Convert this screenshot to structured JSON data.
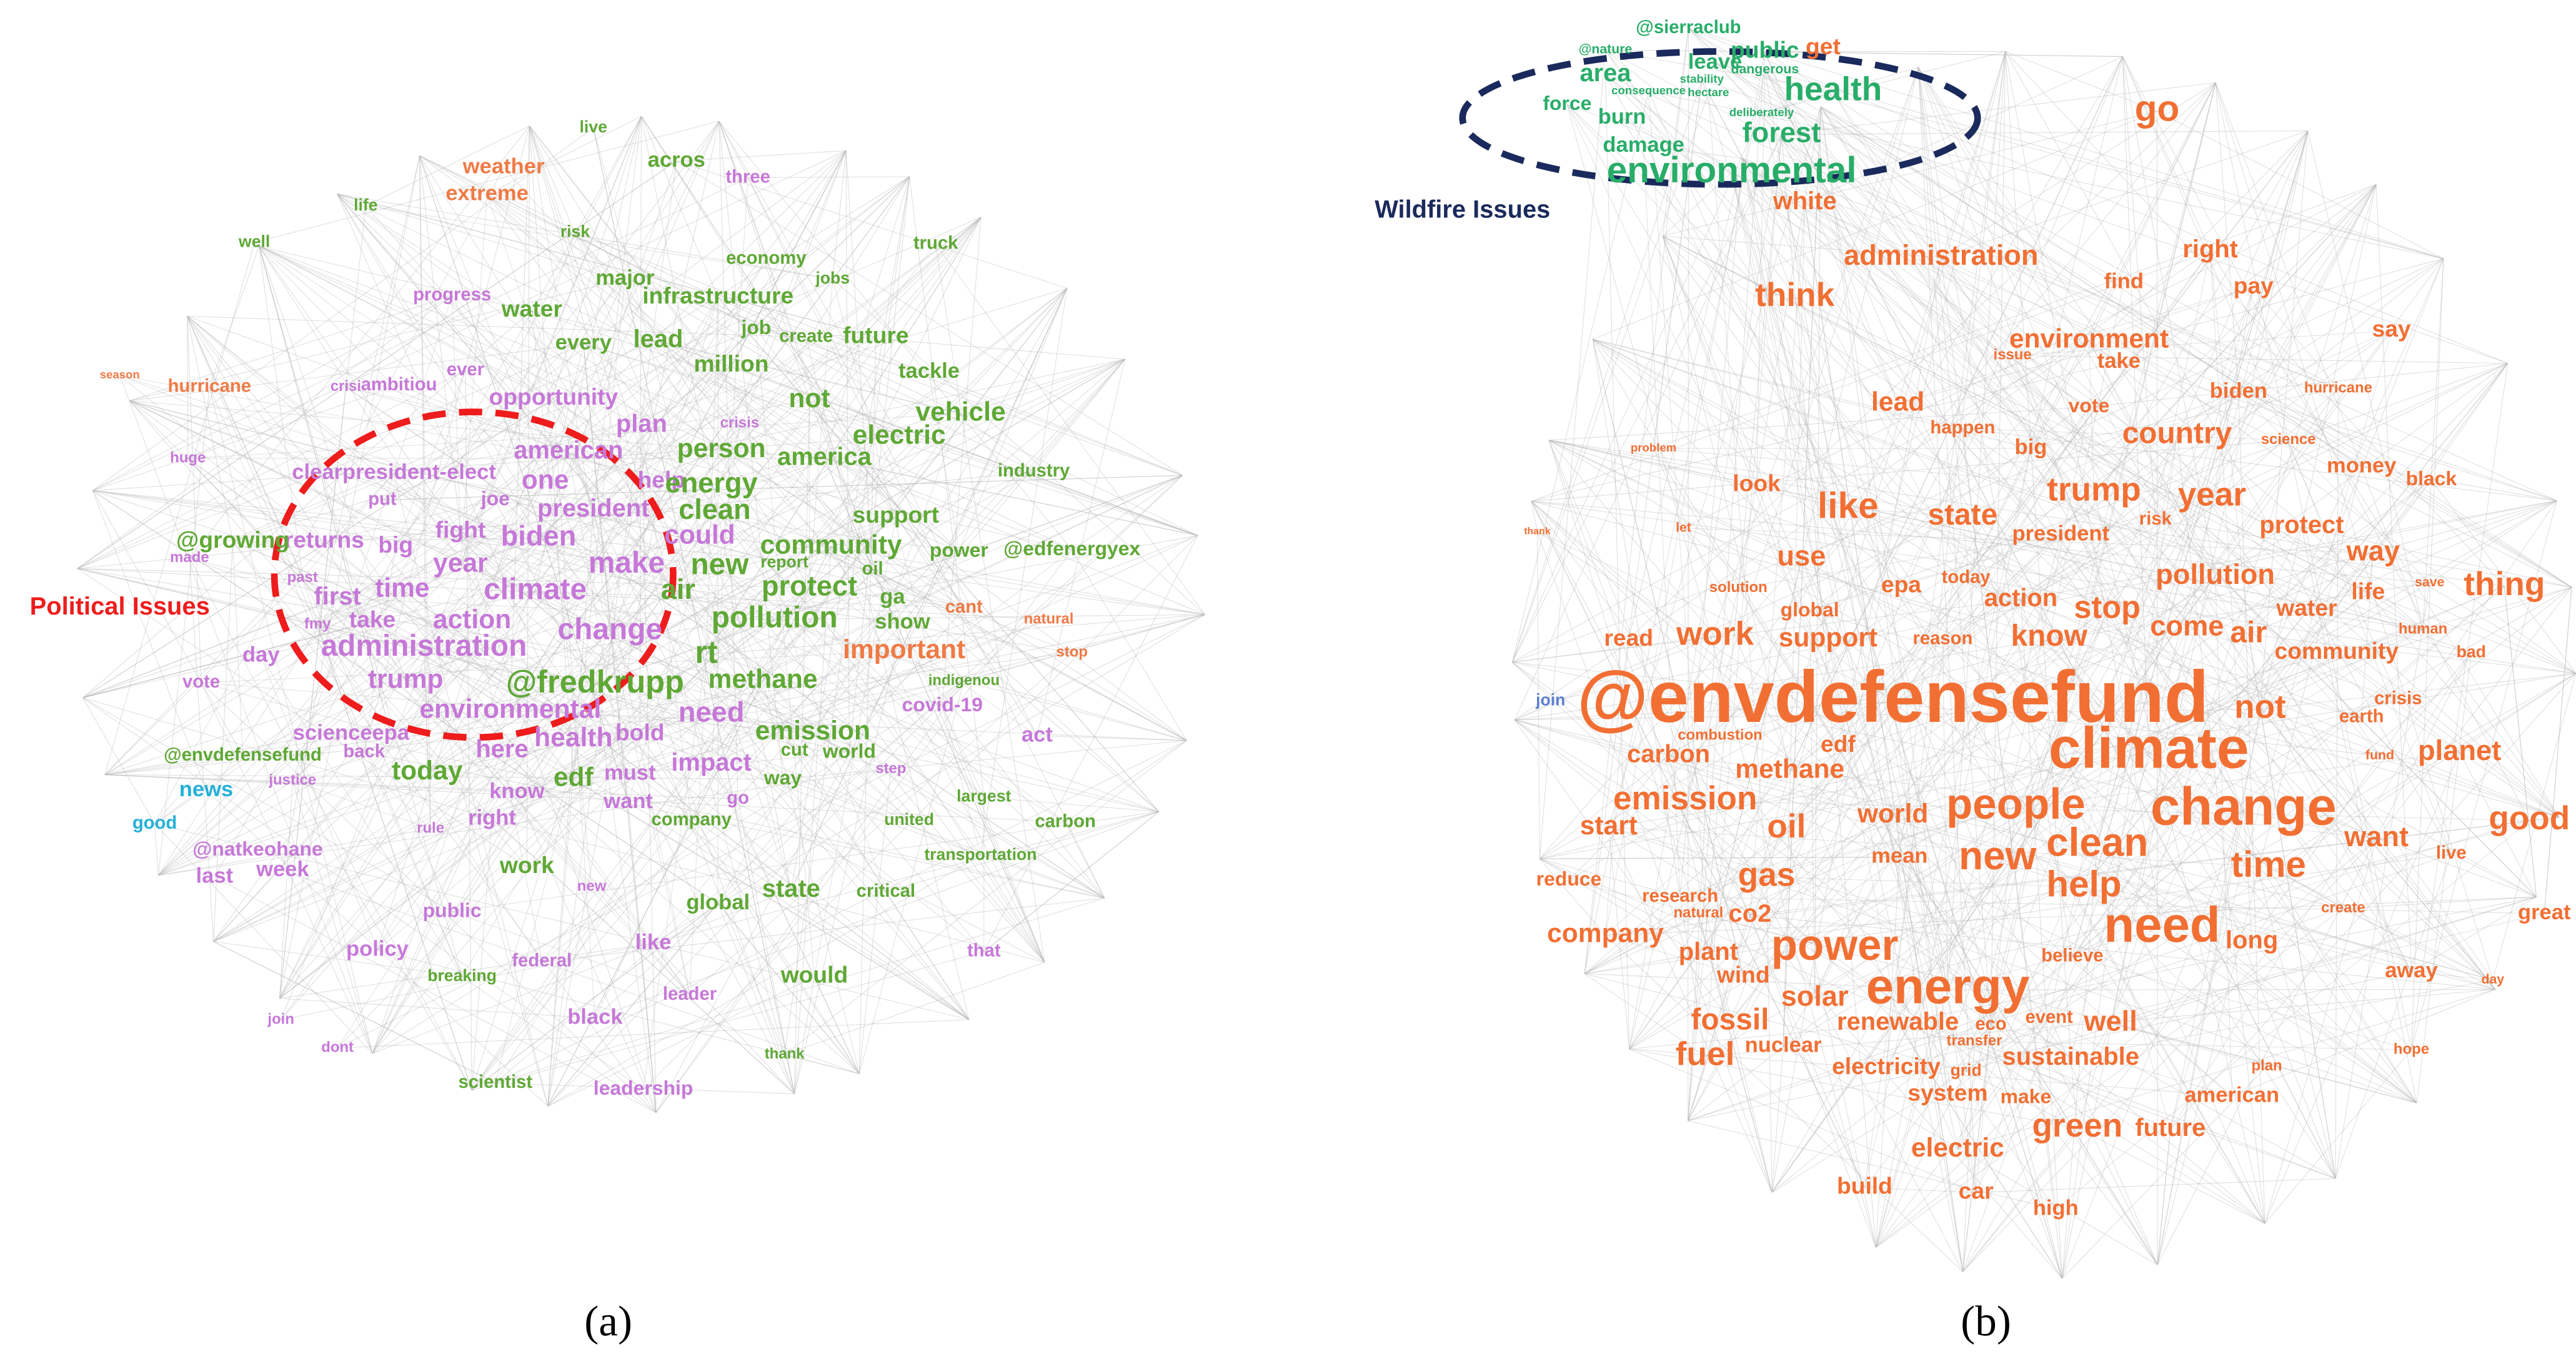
{
  "panels": [
    {
      "label": "(a)",
      "annotation": "Political Issues",
      "annotation_color": "#ee1c1c",
      "groups": [
        {
          "color": "#c678d8",
          "words": [
            "opportunity",
            "american",
            "plan",
            "one",
            "president",
            "help",
            "biden",
            "fight",
            "year",
            "make",
            "climate",
            "time",
            "first",
            "action",
            "change",
            "administration",
            "trump",
            "environmental",
            "health",
            "here",
            "bold",
            "need",
            "impact",
            "science",
            "epa",
            "day",
            "vote",
            "back",
            "justice",
            "know",
            "must",
            "want",
            "go",
            "right",
            "rule",
            "week",
            "@natkeohane",
            "last",
            "public",
            "policy",
            "federal",
            "like",
            "black",
            "leader",
            "leadership",
            "join",
            "dont",
            "that",
            "three",
            "ever",
            "ambitiou",
            "crisi",
            "crisis",
            "joe",
            "put",
            "big",
            "past",
            "fmy",
            "take",
            "clearpresident-elect",
            "made",
            "huge",
            "progress",
            "new",
            "step",
            "covid-19",
            "act",
            "returns",
            "could"
          ]
        },
        {
          "color": "#5fa835",
          "words": [
            "live",
            "acros",
            "life",
            "well",
            "risk",
            "economy",
            "truck",
            "major",
            "jobs",
            "water",
            "infrastructure",
            "every",
            "lead",
            "job",
            "create",
            "future",
            "million",
            "tackle",
            "not",
            "vehicle",
            "electric",
            "america",
            "person",
            "energy",
            "industry",
            "clean",
            "support",
            "@growing",
            "community",
            "power",
            "@edfenergyex",
            "new",
            "air",
            "protect",
            "oil",
            "ga",
            "show",
            "pollution",
            "rt",
            "methane",
            "@fredkrupp",
            "emission",
            "report",
            "cut",
            "world",
            "way",
            "today",
            "edf",
            "company",
            "largest",
            "united",
            "@envdefensefund",
            "work",
            "transportation",
            "state",
            "critical",
            "global",
            "would",
            "breaking",
            "thank",
            "scientist",
            "indigenou",
            "carbon"
          ]
        },
        {
          "color": "#f07a45",
          "words": [
            "weather",
            "extreme",
            "hurricane",
            "cant",
            "natural",
            "important",
            "stop",
            "season"
          ]
        },
        {
          "color": "#25b0d8",
          "words": [
            "news",
            "good"
          ]
        }
      ]
    },
    {
      "label": "(b)",
      "annotation": "Wildfire Issues",
      "annotation_color": "#1b2a5c",
      "groups": [
        {
          "color": "#28ad69",
          "words": [
            "@sierraclub",
            "@nature",
            "public",
            "leave",
            "area",
            "dangerous",
            "stability",
            "consequence",
            "hectare",
            "deliberately",
            "health",
            "force",
            "burn",
            "forest",
            "damage",
            "environmental"
          ]
        },
        {
          "color": "#f26f33",
          "words": [
            "get",
            "go",
            "white",
            "administration",
            "think",
            "right",
            "find",
            "pay",
            "say",
            "environment",
            "take",
            "issue",
            "biden",
            "hurricane",
            "lead",
            "vote",
            "happen",
            "country",
            "science",
            "money",
            "big",
            "problem",
            "black",
            "look",
            "trump",
            "year",
            "like",
            "state",
            "risk",
            "president",
            "protect",
            "way",
            "use",
            "global",
            "pollution",
            "thing",
            "epa",
            "today",
            "action",
            "life",
            "save",
            "solution",
            "stop",
            "water",
            "come",
            "air",
            "read",
            "work",
            "support",
            "reason",
            "know",
            "community",
            "human",
            "bad",
            "thank",
            "let",
            "@envdefensefund",
            "climate",
            "not",
            "earth",
            "crisis",
            "planet",
            "fund",
            "combustion",
            "edf",
            "carbon",
            "methane",
            "emission",
            "change",
            "people",
            "world",
            "good",
            "start",
            "oil",
            "clean",
            "want",
            "live",
            "time",
            "mean",
            "new",
            "gas",
            "help",
            "reduce",
            "research",
            "natural",
            "co2",
            "create",
            "great",
            "need",
            "long",
            "company",
            "power",
            "plant",
            "believe",
            "wind",
            "away",
            "day",
            "energy",
            "solar",
            "renewable",
            "eco",
            "event",
            "well",
            "fossil",
            "transfer",
            "nuclear",
            "fuel",
            "sustainable",
            "electricity",
            "grid",
            "plan",
            "hope",
            "system",
            "make",
            "american",
            "green",
            "future",
            "electric",
            "build",
            "car",
            "high"
          ]
        },
        {
          "color": "#5b7fd4",
          "words": [
            "join"
          ]
        }
      ]
    }
  ]
}
